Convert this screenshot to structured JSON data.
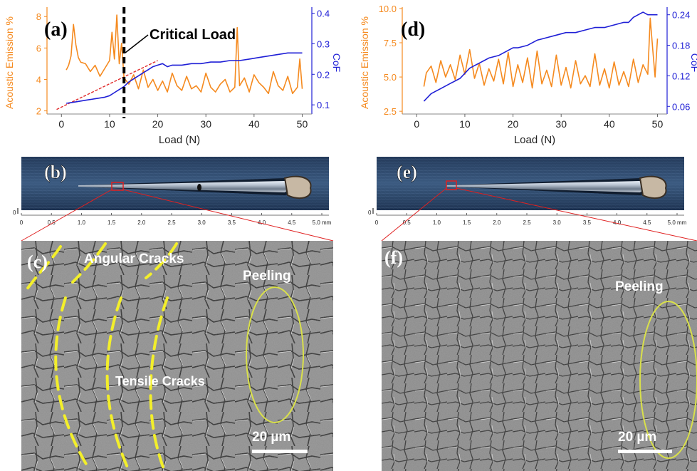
{
  "colors": {
    "ae": "#f58a1f",
    "cof": "#1f1fd6",
    "fit": "#e02a2a",
    "marker": "#000000",
    "crack": "#f3ef2a",
    "ellipse": "#d9e04a",
    "scale_bar": "#ffffff",
    "red_box": "#e02020"
  },
  "panels": {
    "a": {
      "label": "(a)",
      "critical_label": "Critical Load"
    },
    "b": {
      "label": "(b)"
    },
    "c": {
      "label": "(c)",
      "angular": "Angular  Cracks",
      "tensile": "Tensile Cracks",
      "peeling": "Peeling",
      "scale": "20 µm"
    },
    "d": {
      "label": "(d)"
    },
    "e": {
      "label": "(e)"
    },
    "f": {
      "label": "(f)",
      "peeling": "Peeling",
      "scale": "20 µm"
    }
  },
  "scale_ruler": {
    "ticks": [
      "0",
      "0.5",
      "1.0",
      "1.5",
      "2.0",
      "2.5",
      "3.0",
      "3.5",
      "4.0",
      "4.5",
      "5.0 mm"
    ],
    "zero_mark": "0"
  },
  "chart_data": [
    {
      "id": "a",
      "type": "line",
      "xlabel": "Load (N)",
      "ylabel_left": "Acoustic Emission %",
      "ylabel_right": "CoF",
      "xlim": [
        -3,
        52
      ],
      "xticks": [
        0,
        10,
        20,
        30,
        40,
        50
      ],
      "ylim_left": [
        1.8,
        8.6
      ],
      "yticks_left": [
        2,
        4,
        6,
        8
      ],
      "ylim_right": [
        0.07,
        0.42
      ],
      "yticks_right": [
        0.1,
        0.2,
        0.3,
        0.4
      ],
      "critical_load": 13,
      "fit_line": {
        "x": [
          -1,
          20
        ],
        "y": [
          0.085,
          0.245
        ]
      },
      "series": [
        {
          "axis": "left",
          "x": [
            1,
            1.5,
            2,
            2.5,
            3,
            3.5,
            4,
            5,
            6,
            7,
            8,
            9,
            10,
            10.5,
            11,
            11.5,
            12,
            12.5,
            13,
            14,
            15,
            16,
            17,
            18,
            19,
            20,
            21,
            22,
            23,
            24,
            25,
            26,
            27,
            28,
            29,
            30,
            31,
            32,
            33,
            34,
            35,
            36,
            36.5,
            37,
            38,
            39,
            40,
            41,
            42,
            43,
            44,
            45,
            46,
            47,
            48,
            49,
            49.5,
            50
          ],
          "y": [
            4.6,
            4.9,
            5.5,
            7.5,
            6.2,
            5.4,
            5.1,
            5.0,
            4.5,
            4.9,
            4.2,
            4.7,
            5.2,
            7.0,
            5.3,
            8.1,
            5.0,
            6.3,
            4.1,
            3.7,
            4.3,
            3.4,
            4.6,
            3.5,
            4.0,
            3.3,
            3.9,
            3.2,
            4.4,
            3.6,
            3.3,
            4.2,
            3.4,
            3.6,
            3.2,
            4.4,
            3.5,
            3.2,
            3.7,
            4.0,
            3.2,
            3.5,
            7.3,
            3.6,
            4.1,
            3.2,
            4.3,
            3.8,
            3.5,
            3.1,
            4.5,
            3.6,
            3.3,
            4.2,
            3.1,
            3.5,
            5.3,
            3.4
          ]
        },
        {
          "axis": "right",
          "x": [
            1,
            3,
            5,
            7,
            9,
            10,
            11,
            12,
            13,
            14,
            15,
            16,
            17,
            18,
            19,
            20,
            21,
            22,
            23,
            25,
            27,
            29,
            31,
            33,
            35,
            37,
            39,
            41,
            43,
            45,
            47,
            49,
            50
          ],
          "y": [
            0.105,
            0.11,
            0.115,
            0.12,
            0.125,
            0.13,
            0.14,
            0.15,
            0.16,
            0.175,
            0.185,
            0.195,
            0.205,
            0.215,
            0.225,
            0.23,
            0.235,
            0.225,
            0.23,
            0.23,
            0.235,
            0.235,
            0.24,
            0.24,
            0.245,
            0.245,
            0.25,
            0.255,
            0.26,
            0.265,
            0.27,
            0.27,
            0.27
          ]
        }
      ]
    },
    {
      "id": "d",
      "type": "line",
      "xlabel": "Load (N)",
      "ylabel_left": "Acoustic Emission %",
      "ylabel_right": "CoF",
      "xlim": [
        -3,
        52
      ],
      "xticks": [
        0,
        10,
        20,
        30,
        40,
        50
      ],
      "ylim_left": [
        2.3,
        10.1
      ],
      "yticks_left": [
        "2.5",
        "5.0",
        "7.5",
        "10.0"
      ],
      "yticks_left_values": [
        2.5,
        5.0,
        7.5,
        10.0
      ],
      "ylim_right": [
        0.045,
        0.255
      ],
      "yticks_right": [
        "0.06",
        "0.12",
        "0.18",
        "0.24"
      ],
      "yticks_right_values": [
        0.06,
        0.12,
        0.18,
        0.24
      ],
      "series": [
        {
          "axis": "left",
          "x": [
            1.5,
            2,
            3,
            4,
            5,
            6,
            7,
            8,
            9,
            10,
            11,
            12,
            13,
            14,
            15,
            16,
            17,
            18,
            19,
            20,
            21,
            22,
            23,
            24,
            25,
            26,
            27,
            28,
            29,
            30,
            31,
            32,
            33,
            34,
            35,
            36,
            37,
            38,
            39,
            40,
            41,
            42,
            43,
            44,
            45,
            46,
            47,
            48,
            48.5,
            49,
            49.5,
            50
          ],
          "y": [
            4.3,
            5.3,
            5.8,
            4.6,
            6.2,
            5.0,
            5.9,
            4.8,
            6.6,
            5.2,
            7.0,
            4.9,
            6.0,
            4.4,
            5.6,
            4.7,
            6.3,
            4.5,
            6.8,
            4.3,
            5.9,
            4.6,
            6.4,
            4.2,
            6.9,
            4.5,
            5.5,
            4.3,
            6.6,
            4.4,
            5.7,
            4.2,
            6.2,
            4.5,
            5.1,
            4.3,
            6.7,
            4.4,
            5.6,
            4.2,
            6.1,
            4.4,
            5.4,
            4.3,
            6.3,
            4.6,
            5.9,
            5.2,
            9.3,
            7.1,
            5.0,
            7.8
          ]
        },
        {
          "axis": "right",
          "x": [
            1.5,
            3,
            5,
            7,
            9,
            10,
            11,
            12,
            13,
            14,
            15,
            17,
            19,
            20,
            21,
            23,
            25,
            27,
            29,
            31,
            33,
            35,
            37,
            39,
            41,
            43,
            44,
            45,
            46,
            47,
            48,
            49,
            50
          ],
          "y": [
            0.07,
            0.085,
            0.095,
            0.105,
            0.115,
            0.125,
            0.135,
            0.14,
            0.145,
            0.15,
            0.155,
            0.16,
            0.17,
            0.175,
            0.175,
            0.18,
            0.19,
            0.195,
            0.2,
            0.205,
            0.205,
            0.21,
            0.215,
            0.215,
            0.22,
            0.225,
            0.225,
            0.235,
            0.24,
            0.245,
            0.24,
            0.24,
            0.24
          ]
        }
      ]
    }
  ]
}
